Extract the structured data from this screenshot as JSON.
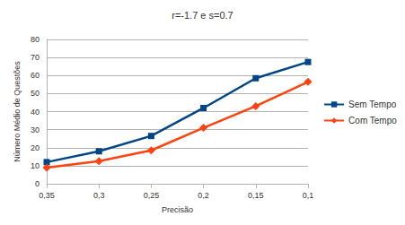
{
  "chart_data": {
    "type": "line",
    "title": "r=-1.7 e s=0.7",
    "x_label": "Precisão",
    "y_label": "Número Médio de Questões",
    "categories": [
      "0,35",
      "0,3",
      "0,25",
      "0,2",
      "0,15",
      "0,1"
    ],
    "series": [
      {
        "name": "Sem Tempo",
        "color": "#004586",
        "marker": "square",
        "values": [
          12,
          18,
          26.5,
          42,
          58.5,
          67.5
        ]
      },
      {
        "name": "Com Tempo",
        "color": "#ff420e",
        "marker": "diamond",
        "values": [
          9,
          12.5,
          18.5,
          31,
          43,
          56.5
        ]
      }
    ],
    "ylim": [
      0,
      80
    ],
    "yticks": [
      0,
      10,
      20,
      30,
      40,
      50,
      60,
      70,
      80
    ],
    "grid": true,
    "legend": "right"
  }
}
